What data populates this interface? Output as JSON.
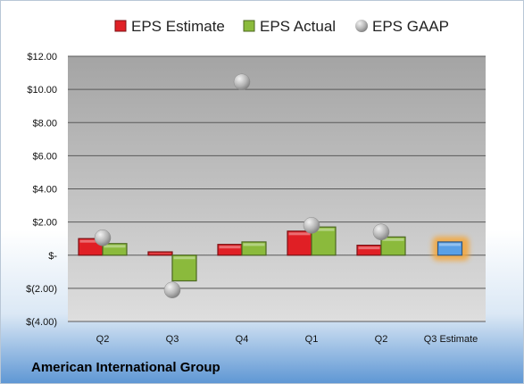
{
  "chart_data": {
    "type": "bar",
    "categories": [
      "Q2",
      "Q3",
      "Q4",
      "Q1",
      "Q2",
      "Q3 Estimate"
    ],
    "series": [
      {
        "name": "EPS Estimate",
        "kind": "bar",
        "color": "#e02026",
        "values": [
          1.0,
          0.2,
          0.65,
          1.45,
          0.6,
          null
        ]
      },
      {
        "name": "EPS Actual",
        "kind": "bar",
        "color": "#8bbb3c",
        "values": [
          0.7,
          -1.55,
          0.8,
          1.7,
          1.1,
          null
        ]
      },
      {
        "name": "EPS GAAP",
        "kind": "scatter",
        "color": "#b5b5b5",
        "values": [
          1.05,
          -2.1,
          10.45,
          1.8,
          1.4,
          null
        ]
      },
      {
        "name": "Q3 Estimate",
        "kind": "bar",
        "color": "#5aa0e6",
        "highlight": "#f5a637",
        "values": [
          null,
          null,
          null,
          null,
          null,
          0.8
        ]
      }
    ],
    "ylim": [
      -4,
      12
    ],
    "yticks": [
      -4,
      -2,
      0,
      2,
      4,
      6,
      8,
      10,
      12
    ],
    "ytick_labels": [
      "$(4.00)",
      "$(2.00)",
      "$-",
      "$2.00",
      "$4.00",
      "$6.00",
      "$8.00",
      "$10.00",
      "$12.00"
    ],
    "grid": true,
    "legend": "top"
  },
  "footer": {
    "company": "American International Group"
  }
}
